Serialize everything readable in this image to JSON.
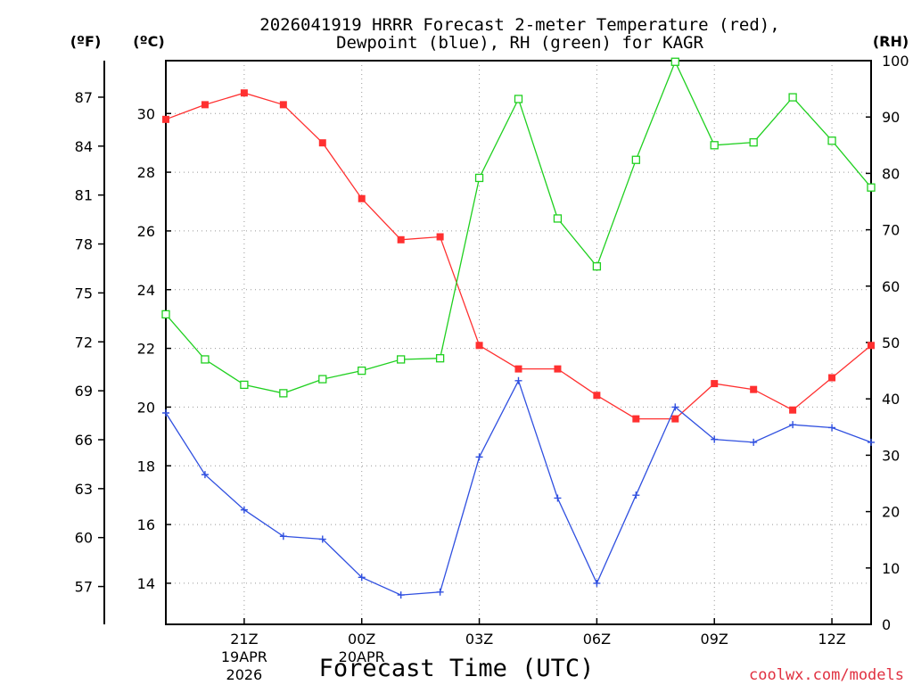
{
  "chart_data": {
    "type": "line",
    "title_line1": "2026041919 HRRR Forecast 2-meter Temperature (red),",
    "title_line2": "Dewpoint (blue), RH (green) for KAGR",
    "xlabel": "Forecast Time (UTC)",
    "credit": "coolwx.com/models",
    "unit_labels": {
      "fahrenheit": "(ºF)",
      "celsius": "(ºC)",
      "rh": "(RH)"
    },
    "x_hours_utc": [
      "19Z",
      "20Z",
      "21Z",
      "22Z",
      "23Z",
      "00Z",
      "01Z",
      "02Z",
      "03Z",
      "04Z",
      "05Z",
      "06Z",
      "07Z",
      "08Z",
      "09Z",
      "10Z",
      "11Z",
      "12Z",
      "13Z"
    ],
    "x_ticks": [
      {
        "label": "21Z",
        "index": 2,
        "sub": [
          "19APR",
          "2026"
        ]
      },
      {
        "label": "00Z",
        "index": 5,
        "sub": [
          "20APR"
        ]
      },
      {
        "label": "03Z",
        "index": 8,
        "sub": []
      },
      {
        "label": "06Z",
        "index": 11,
        "sub": []
      },
      {
        "label": "09Z",
        "index": 14,
        "sub": []
      },
      {
        "label": "12Z",
        "index": 17,
        "sub": []
      }
    ],
    "celsius_axis": {
      "min": 12.6,
      "max": 31.8,
      "ticks": [
        14,
        16,
        18,
        20,
        22,
        24,
        26,
        28,
        30
      ]
    },
    "fahrenheit_ticks": [
      57,
      60,
      63,
      66,
      69,
      72,
      75,
      78,
      81,
      84,
      87
    ],
    "rh_axis": {
      "min": 0,
      "max": 100,
      "ticks": [
        0,
        10,
        20,
        30,
        40,
        50,
        60,
        70,
        80,
        90,
        100
      ]
    },
    "grid": true,
    "series": [
      {
        "name": "Temperature",
        "axis": "celsius",
        "color": "#ff3030",
        "marker": "filled-square",
        "values": [
          29.8,
          30.3,
          30.7,
          30.3,
          29.0,
          27.1,
          25.7,
          25.8,
          22.1,
          21.3,
          21.3,
          20.4,
          19.6,
          19.6,
          20.8,
          20.6,
          19.9,
          21.0,
          22.1
        ]
      },
      {
        "name": "Dewpoint",
        "axis": "celsius",
        "color": "#3050e0",
        "marker": "plus",
        "values": [
          19.8,
          17.7,
          16.5,
          15.6,
          15.5,
          14.2,
          13.6,
          13.7,
          18.3,
          20.9,
          16.9,
          14.0,
          17.0,
          20.0,
          18.9,
          18.8,
          19.4,
          19.3,
          18.8
        ]
      },
      {
        "name": "RH",
        "axis": "rh",
        "color": "#20d020",
        "marker": "open-square",
        "values": [
          55.0,
          47.0,
          42.5,
          41.0,
          43.5,
          45.0,
          47.0,
          47.2,
          79.2,
          93.2,
          72.0,
          63.5,
          82.4,
          99.8,
          85.0,
          85.5,
          93.5,
          85.8,
          77.5
        ]
      }
    ]
  }
}
